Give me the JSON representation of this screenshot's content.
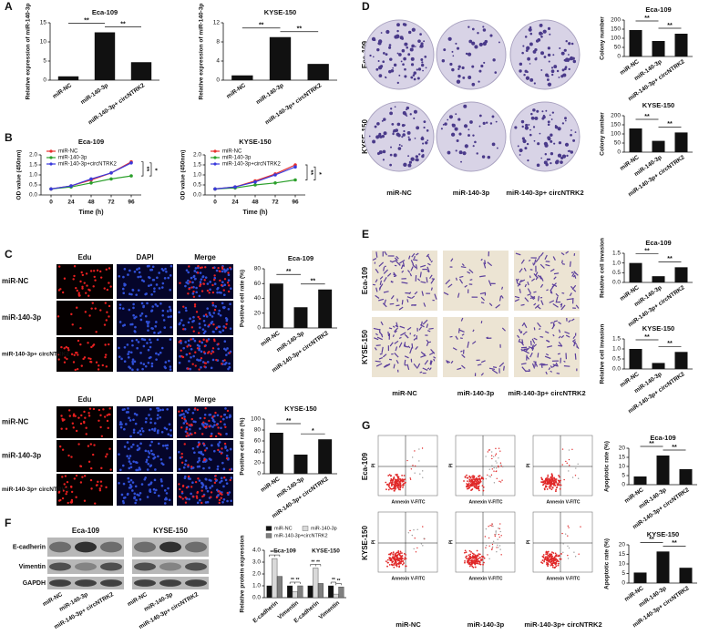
{
  "panels": [
    "A",
    "B",
    "C",
    "D",
    "E",
    "F",
    "G"
  ],
  "images": {
    "conditions": [
      "miR-NC",
      "miR-140-3p",
      "miR-140-3p+ circNTRK2"
    ],
    "stains": [
      "Edu",
      "DAPI",
      "Merge"
    ],
    "cell_lines": [
      "Eca-109",
      "KYSE-150"
    ],
    "blot_rows": [
      "E-cadherin",
      "Vimentin",
      "GAPDH"
    ],
    "flow_x": "Annexin V-FITC",
    "flow_y": "PI"
  },
  "chart_data": [
    {
      "type": "bar",
      "title": "Eca-109",
      "ylabel": "Relative expression of miR-140-3p",
      "categories": [
        "miR-NC",
        "miR-140-3p",
        "miR-140-3p+ circNTRK2"
      ],
      "values": [
        1,
        12.5,
        4.7
      ],
      "color": "#111111",
      "ylim": [
        0,
        15
      ],
      "yticks": [
        0,
        5,
        10,
        15
      ],
      "significance": [
        "**",
        "**"
      ]
    },
    {
      "type": "bar",
      "title": "KYSE-150",
      "ylabel": "Relative expression of miR-140-3p",
      "categories": [
        "miR-NC",
        "miR-140-3p",
        "miR-140-3p+ circNTRK2"
      ],
      "values": [
        1,
        9,
        3.4
      ],
      "color": "#111111",
      "ylim": [
        0,
        12
      ],
      "yticks": [
        0,
        4,
        8,
        12
      ],
      "significance": [
        "**",
        "**"
      ]
    },
    {
      "type": "line",
      "title": "Eca-109",
      "xlabel": "Time (h)",
      "ylabel": "OD value (450nm)",
      "x": [
        0,
        24,
        48,
        72,
        96
      ],
      "xlim": [
        -12,
        108
      ],
      "xticks": [
        0,
        24,
        48,
        72,
        96
      ],
      "ylim": [
        0,
        2
      ],
      "yticks": [
        {
          "value": 0,
          "label": "0.0"
        },
        {
          "value": 0.5,
          "label": "0.5"
        },
        {
          "value": 1,
          "label": "1.0"
        },
        {
          "value": 1.5,
          "label": "1.5"
        },
        {
          "value": 2,
          "label": "2.0"
        }
      ],
      "series": [
        {
          "name": "miR-NC",
          "color": "#e8312f",
          "values": [
            0.3,
            0.45,
            0.75,
            1.1,
            1.65
          ]
        },
        {
          "name": "miR-140-3p",
          "color": "#2ca02c",
          "values": [
            0.3,
            0.4,
            0.6,
            0.8,
            0.95
          ]
        },
        {
          "name": "miR-140-3p+circNTRK2",
          "color": "#3a3adc",
          "values": [
            0.3,
            0.45,
            0.8,
            1.1,
            1.6
          ]
        }
      ],
      "significance": [
        "**",
        "*"
      ]
    },
    {
      "type": "line",
      "title": "KYSE-150",
      "xlabel": "Time (h)",
      "ylabel": "OD value (450nm)",
      "x": [
        0,
        24,
        48,
        72,
        96
      ],
      "xlim": [
        -12,
        108
      ],
      "xticks": [
        0,
        24,
        48,
        72,
        96
      ],
      "ylim": [
        0,
        2
      ],
      "yticks": [
        {
          "value": 0,
          "label": "0.0"
        },
        {
          "value": 0.5,
          "label": "0.5"
        },
        {
          "value": 1,
          "label": "1.0"
        },
        {
          "value": 1.5,
          "label": "1.5"
        },
        {
          "value": 2,
          "label": "2.0"
        }
      ],
      "series": [
        {
          "name": "miR-NC",
          "color": "#e8312f",
          "values": [
            0.3,
            0.4,
            0.7,
            1.05,
            1.5
          ]
        },
        {
          "name": "miR-140-3p",
          "color": "#2ca02c",
          "values": [
            0.3,
            0.35,
            0.5,
            0.6,
            0.75
          ]
        },
        {
          "name": "miR-140-3p+circNTRK2",
          "color": "#3a3adc",
          "values": [
            0.3,
            0.4,
            0.65,
            1.0,
            1.4
          ]
        }
      ],
      "significance": [
        "**",
        "*"
      ]
    },
    {
      "type": "bar",
      "title": "Eca-109",
      "ylabel": "Positive cell rate (%)",
      "categories": [
        "miR-NC",
        "miR-140-3p",
        "miR-140-3p+ circNTRK2"
      ],
      "values": [
        60,
        28,
        52
      ],
      "color": "#111111",
      "ylim": [
        0,
        80
      ],
      "yticks": [
        0,
        20,
        40,
        60,
        80
      ],
      "significance": [
        "**",
        "**"
      ]
    },
    {
      "type": "bar",
      "title": "KYSE-150",
      "ylabel": "Positive cell rate (%)",
      "categories": [
        "miR-NC",
        "miR-140-3p",
        "miR-140-3p+ circNTRK2"
      ],
      "values": [
        75,
        35,
        63
      ],
      "color": "#111111",
      "ylim": [
        0,
        100
      ],
      "yticks": [
        0,
        20,
        40,
        60,
        80,
        100
      ],
      "significance": [
        "**",
        "*"
      ]
    },
    {
      "type": "bar",
      "title": "Eca-109",
      "ylabel": "Colony number",
      "categories": [
        "miR-NC",
        "miR-140-3p",
        "miR-140-3p+ circNTRK2"
      ],
      "values": [
        145,
        85,
        125
      ],
      "color": "#111111",
      "ylim": [
        0,
        200
      ],
      "yticks": [
        0,
        50,
        100,
        150,
        200
      ],
      "significance": [
        "**",
        "**"
      ]
    },
    {
      "type": "bar",
      "title": "KYSE-150",
      "ylabel": "Colony number",
      "categories": [
        "miR-NC",
        "miR-140-3p",
        "miR-140-3p+ circNTRK2"
      ],
      "values": [
        130,
        62,
        108
      ],
      "color": "#111111",
      "ylim": [
        0,
        200
      ],
      "yticks": [
        0,
        50,
        100,
        150,
        200
      ],
      "significance": [
        "**",
        "**"
      ]
    },
    {
      "type": "bar",
      "title": "Eca-109",
      "ylabel": "Relative cell invasion",
      "categories": [
        "miR-NC",
        "miR-140-3p",
        "miR-140-3p+ circNTRK2"
      ],
      "values": [
        1.0,
        0.32,
        0.78
      ],
      "color": "#111111",
      "ylim": [
        0,
        1.5
      ],
      "yticks": [
        {
          "value": 0,
          "label": "0.0"
        },
        {
          "value": 0.5,
          "label": "0.5"
        },
        {
          "value": 1,
          "label": "1.0"
        },
        {
          "value": 1.5,
          "label": "1.5"
        }
      ],
      "significance": [
        "**",
        "**"
      ]
    },
    {
      "type": "bar",
      "title": "KYSE-150",
      "ylabel": "Relative cell invasion",
      "categories": [
        "miR-NC",
        "miR-140-3p",
        "miR-140-3p+ circNTRK2"
      ],
      "values": [
        1.0,
        0.3,
        0.85
      ],
      "color": "#111111",
      "ylim": [
        0,
        1.5
      ],
      "yticks": [
        {
          "value": 0,
          "label": "0.0"
        },
        {
          "value": 0.5,
          "label": "0.5"
        },
        {
          "value": 1,
          "label": "1.0"
        },
        {
          "value": 1.5,
          "label": "1.5"
        }
      ],
      "significance": [
        "**",
        "**"
      ]
    },
    {
      "type": "bar",
      "title": "Eca-109",
      "ylabel": "Apoptotic rate (%)",
      "categories": [
        "miR-NC",
        "miR-140-3p",
        "miR-140-3p+ circNTRK2"
      ],
      "values": [
        4.5,
        16,
        8.5
      ],
      "color": "#111111",
      "ylim": [
        0,
        20
      ],
      "yticks": [
        0,
        5,
        10,
        15,
        20
      ],
      "significance": [
        "**",
        "**"
      ]
    },
    {
      "type": "bar",
      "title": "KYSE-150",
      "ylabel": "Apoptotic rate (%)",
      "categories": [
        "miR-NC",
        "miR-140-3p",
        "miR-140-3p+ circNTRK2"
      ],
      "values": [
        5.5,
        16.5,
        8
      ],
      "color": "#111111",
      "ylim": [
        0,
        20
      ],
      "yticks": [
        0,
        5,
        10,
        15,
        20
      ],
      "significance": [
        "**",
        "**"
      ]
    },
    {
      "type": "grouped",
      "ylabel": "Relative protein expression",
      "groups": [
        "Eca-109",
        "KYSE-150"
      ],
      "categories": [
        "E-cadherin",
        "Vimentin",
        "E-cadherin",
        "Vimentin"
      ],
      "ylim": [
        0,
        4
      ],
      "yticks": [
        {
          "value": 0,
          "label": "0.0"
        },
        {
          "value": 1,
          "label": "1.0"
        },
        {
          "value": 2,
          "label": "2.0"
        },
        {
          "value": 3,
          "label": "3.0"
        },
        {
          "value": 4,
          "label": "4.0"
        }
      ],
      "series": [
        {
          "name": "miR-NC",
          "color": "#111111",
          "values": [
            1,
            1,
            1,
            1
          ]
        },
        {
          "name": "miR-140-3p",
          "color": "#d9d9d9",
          "values": [
            3.3,
            0.5,
            2.5,
            0.3
          ]
        },
        {
          "name": "miR-140-3p+circNTRK2",
          "color": "#7f7f7f",
          "values": [
            1.8,
            1,
            1.2,
            0.9
          ]
        }
      ],
      "significance": [
        "**",
        "**",
        "**",
        "**",
        "**",
        "**",
        "**",
        "**"
      ]
    }
  ]
}
